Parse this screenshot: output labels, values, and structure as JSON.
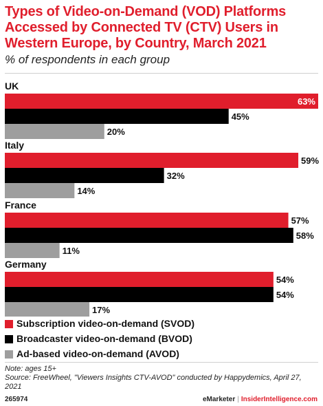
{
  "header": {
    "title": "Types of Video-on-Demand (VOD) Platforms Accessed by Connected TV (CTV) Users in Western Europe, by Country, March 2021",
    "subtitle": "% of respondents in each group"
  },
  "chart_data": {
    "type": "bar",
    "orientation": "horizontal",
    "title": "Types of Video-on-Demand (VOD) Platforms Accessed by Connected TV (CTV) Users in Western Europe, by Country, March 2021",
    "subtitle": "% of respondents in each group",
    "categories": [
      "UK",
      "Italy",
      "France",
      "Germany"
    ],
    "series": [
      {
        "name": "Subscription video-on-demand (SVOD)",
        "color": "#e01e2c",
        "values": [
          63,
          59,
          57,
          54
        ]
      },
      {
        "name": "Broadcaster video-on-demand (BVOD)",
        "color": "#000000",
        "values": [
          45,
          32,
          58,
          54
        ]
      },
      {
        "name": "Ad-based video-on-demand (AVOD)",
        "color": "#9e9e9e",
        "values": [
          20,
          14,
          11,
          17
        ]
      }
    ],
    "value_suffix": "%",
    "xlim": [
      0,
      63
    ],
    "grid": false,
    "legend": "bottom-left"
  },
  "legend_items": [
    {
      "label": "Subscription video-on-demand (SVOD)",
      "color": "#e01e2c"
    },
    {
      "label": "Broadcaster video-on-demand (BVOD)",
      "color": "#000000"
    },
    {
      "label": "Ad-based video-on-demand (AVOD)",
      "color": "#9e9e9e"
    }
  ],
  "notes": {
    "note": "Note: ages 15+",
    "source": "Source: FreeWheel, \"Viewers Insights CTV-AVOD\" conducted by Happydemics, April 27, 2021"
  },
  "footer": {
    "id": "265974",
    "brand": "eMarketer",
    "separator": "|",
    "site": "InsiderIntelligence.com"
  }
}
